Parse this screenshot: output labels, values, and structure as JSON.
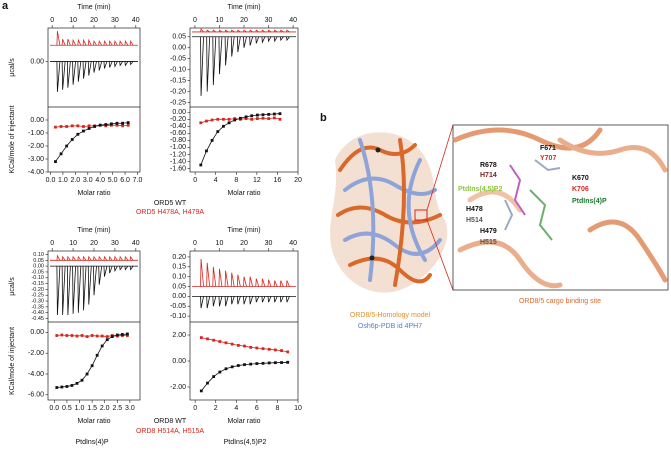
{
  "panel_labels": [
    "a",
    "b"
  ],
  "chart_data": [
    {
      "type": "itc",
      "top_axis_label": "Time (min)",
      "tlim": [
        -2,
        42
      ],
      "tticks": [
        0,
        10,
        20,
        30,
        40
      ],
      "raw_ylabel": "µcal/s",
      "ylim": [
        -0.45,
        0.33
      ],
      "yticks": [
        {
          "value": 0,
          "label": "0.00"
        }
      ],
      "raw_series": [
        {
          "color": "#d7261e",
          "baseline": 0.16,
          "x": [
            2.5,
            5,
            7.5,
            10,
            12.5,
            15,
            17.5,
            20,
            22.5,
            25,
            27.5,
            30,
            32.5,
            35,
            37.5
          ],
          "values": [
            0.3,
            0.22,
            0.22,
            0.21,
            0.21,
            0.21,
            0.21,
            0.2,
            0.2,
            0.2,
            0.2,
            0.2,
            0.2,
            0.2,
            0.2
          ]
        },
        {
          "color": "#111111",
          "baseline": 0,
          "x": [
            2.5,
            5,
            7.5,
            10,
            12.5,
            15,
            17.5,
            20,
            22.5,
            25,
            27.5,
            30,
            32.5,
            35,
            37.5
          ],
          "values": [
            -0.3,
            -0.28,
            -0.26,
            -0.23,
            -0.2,
            -0.17,
            -0.14,
            -0.11,
            -0.09,
            -0.07,
            -0.06,
            -0.05,
            -0.04,
            -0.04,
            -0.03
          ]
        }
      ],
      "iso_ylabel": "KCal/mole of injectant",
      "iso_ylim": [
        -4,
        1
      ],
      "iso_yticks": [
        {
          "value": 0,
          "label": "0.00"
        },
        {
          "value": -1,
          "label": "-1.00"
        },
        {
          "value": -2,
          "label": "-2.00"
        },
        {
          "value": -3,
          "label": "-3.00"
        },
        {
          "value": -4,
          "label": "-4.00"
        }
      ],
      "iso_xlabel": "Molar ratio",
      "iso_xlim": [
        -0.2,
        7.2
      ],
      "iso_xticks": [
        {
          "value": 0,
          "label": "0.0"
        },
        {
          "value": 1,
          "label": "1.0"
        },
        {
          "value": 2,
          "label": "2.0"
        },
        {
          "value": 3,
          "label": "3.0"
        },
        {
          "value": 4,
          "label": "4.0"
        },
        {
          "value": 5,
          "label": "5.0"
        },
        {
          "value": 6,
          "label": "6.0"
        },
        {
          "value": 7,
          "label": "7.0"
        }
      ],
      "iso_series": [
        {
          "color": "#d7261e",
          "x": [
            0.4,
            0.85,
            1.3,
            1.75,
            2.2,
            2.65,
            3.1,
            3.55,
            4.0,
            4.45,
            4.9,
            5.35,
            5.8,
            6.25
          ],
          "values": [
            -0.55,
            -0.5,
            -0.5,
            -0.45,
            -0.45,
            -0.5,
            -0.45,
            -0.45,
            -0.4,
            -0.45,
            -0.4,
            -0.4,
            -0.45,
            -0.4
          ]
        },
        {
          "color": "#111111",
          "x": [
            0.4,
            0.85,
            1.3,
            1.75,
            2.2,
            2.65,
            3.1,
            3.55,
            4.0,
            4.45,
            4.9,
            5.35,
            5.8,
            6.25
          ],
          "values": [
            -3.2,
            -2.6,
            -2.0,
            -1.5,
            -1.1,
            -0.85,
            -0.65,
            -0.5,
            -0.4,
            -0.35,
            -0.3,
            -0.25,
            -0.25,
            -0.2
          ]
        }
      ]
    },
    {
      "type": "itc",
      "top_axis_label": "Time (min)",
      "tlim": [
        -2,
        42
      ],
      "tticks": [
        0,
        10,
        20,
        30,
        40
      ],
      "ylim": [
        -0.27,
        0.09
      ],
      "yticks": [
        {
          "value": 0.05,
          "label": "0.05"
        },
        {
          "value": 0,
          "label": "0.00"
        },
        {
          "value": -0.05,
          "label": "-0.05"
        },
        {
          "value": -0.1,
          "label": "-0.10"
        },
        {
          "value": -0.15,
          "label": "-0.15"
        },
        {
          "value": -0.2,
          "label": "-0.20"
        },
        {
          "value": -0.25,
          "label": "-0.25"
        }
      ],
      "raw_series": [
        {
          "color": "#d7261e",
          "baseline": 0.072,
          "x": [
            2.5,
            5,
            7.5,
            10,
            12.5,
            15,
            17.5,
            20,
            22.5,
            25,
            27.5,
            30,
            32.5,
            35,
            37.5
          ],
          "values": [
            0.085,
            0.08,
            0.08,
            0.08,
            0.08,
            0.08,
            0.08,
            0.08,
            0.08,
            0.08,
            0.08,
            0.08,
            0.08,
            0.08,
            0.08
          ]
        },
        {
          "color": "#111111",
          "baseline": 0.05,
          "x": [
            2.5,
            5,
            7.5,
            10,
            12.5,
            15,
            17.5,
            20,
            22.5,
            25,
            27.5,
            30,
            32.5,
            35,
            37.5
          ],
          "values": [
            -0.22,
            -0.2,
            -0.17,
            -0.12,
            -0.08,
            -0.04,
            -0.02,
            0,
            0.01,
            0.02,
            0.025,
            0.03,
            0.03,
            0.035,
            0.035
          ]
        }
      ],
      "iso_ylim": [
        -1.7,
        0.15
      ],
      "iso_yticks": [
        {
          "value": 0,
          "label": "0.00"
        },
        {
          "value": -0.2,
          "label": "-0.20"
        },
        {
          "value": -0.4,
          "label": "-0.40"
        },
        {
          "value": -0.6,
          "label": "-0.60"
        },
        {
          "value": -0.8,
          "label": "-0.80"
        },
        {
          "value": -1,
          "label": "-1.00"
        },
        {
          "value": -1.2,
          "label": "-1.20"
        },
        {
          "value": -1.4,
          "label": "-1.40"
        },
        {
          "value": -1.6,
          "label": "-1.60"
        }
      ],
      "iso_xlabel": "Molar ratio",
      "iso_xlim": [
        -1,
        20
      ],
      "iso_xticks": [
        0,
        4,
        8,
        12,
        16,
        20
      ],
      "iso_series": [
        {
          "color": "#d7261e",
          "x": [
            1.1,
            2.2,
            3.3,
            4.4,
            5.5,
            6.6,
            7.7,
            8.8,
            9.9,
            11,
            12.1,
            13.2,
            14.3,
            15.4,
            16.5
          ],
          "values": [
            -0.3,
            -0.25,
            -0.22,
            -0.2,
            -0.2,
            -0.2,
            -0.18,
            -0.2,
            -0.18,
            -0.2,
            -0.18,
            -0.17,
            -0.18,
            -0.16,
            -0.2
          ]
        },
        {
          "color": "#111111",
          "x": [
            1.1,
            2.2,
            3.3,
            4.4,
            5.5,
            6.6,
            7.7,
            8.8,
            9.9,
            11,
            12.1,
            13.2,
            14.3,
            15.4,
            16.5
          ],
          "values": [
            -1.5,
            -1.1,
            -0.8,
            -0.55,
            -0.4,
            -0.3,
            -0.22,
            -0.17,
            -0.13,
            -0.1,
            -0.08,
            -0.07,
            -0.06,
            -0.05,
            -0.04
          ]
        }
      ]
    },
    {
      "type": "itc",
      "top_axis_label": "Time (min)",
      "tlim": [
        -2,
        42
      ],
      "tticks": [
        0,
        10,
        20,
        30,
        40
      ],
      "raw_ylabel": "µcal/s",
      "ylim": [
        -0.48,
        0.13
      ],
      "yticks": [
        {
          "value": 0.1,
          "label": "0.10"
        },
        {
          "value": 0.05,
          "label": "0.05"
        },
        {
          "value": 0,
          "label": "0.00"
        },
        {
          "value": -0.05,
          "label": "-0.05"
        },
        {
          "value": -0.1,
          "label": "-0.10"
        },
        {
          "value": -0.15,
          "label": "-0.15"
        },
        {
          "value": -0.2,
          "label": "-0.20"
        },
        {
          "value": -0.25,
          "label": "-0.25"
        },
        {
          "value": -0.3,
          "label": "-0.30"
        },
        {
          "value": -0.35,
          "label": "-0.35"
        },
        {
          "value": -0.4,
          "label": "-0.40"
        },
        {
          "value": -0.45,
          "label": "-0.45"
        }
      ],
      "raw_series": [
        {
          "color": "#d7261e",
          "baseline": 0.05,
          "x": [
            2.5,
            5,
            7.5,
            10,
            12.5,
            15,
            17.5,
            20,
            22.5,
            25,
            27.5,
            30,
            32.5,
            35,
            37.5
          ],
          "values": [
            0.09,
            0.08,
            0.08,
            0.08,
            0.08,
            0.08,
            0.08,
            0.08,
            0.08,
            0.08,
            0.08,
            0.08,
            0.08,
            0.08,
            0.08
          ]
        },
        {
          "color": "#111111",
          "baseline": 0,
          "x": [
            2.5,
            5,
            7.5,
            10,
            12.5,
            15,
            17.5,
            20,
            22.5,
            25,
            27.5,
            30,
            32.5,
            35,
            37.5
          ],
          "values": [
            -0.42,
            -0.42,
            -0.42,
            -0.41,
            -0.4,
            -0.38,
            -0.33,
            -0.25,
            -0.16,
            -0.09,
            -0.06,
            -0.04,
            -0.03,
            -0.03,
            -0.03
          ]
        }
      ],
      "iso_ylabel": "KCal/mole of injectant",
      "iso_ylim": [
        -6.5,
        1
      ],
      "iso_yticks": [
        {
          "value": 0,
          "label": "0.00"
        },
        {
          "value": -2,
          "label": "-2.00"
        },
        {
          "value": -4,
          "label": "-4.00"
        },
        {
          "value": -6,
          "label": "-6.00"
        }
      ],
      "iso_xlabel": "Molar ratio",
      "iso_xlim": [
        -0.25,
        3.4
      ],
      "iso_xticks": [
        {
          "value": 0,
          "label": "0.0"
        },
        {
          "value": 0.5,
          "label": "0.5"
        },
        {
          "value": 1,
          "label": "1.0"
        },
        {
          "value": 1.5,
          "label": "1.5"
        },
        {
          "value": 2,
          "label": "2.0"
        },
        {
          "value": 2.5,
          "label": "2.5"
        },
        {
          "value": 3,
          "label": "3.0"
        }
      ],
      "iso_series": [
        {
          "color": "#d7261e",
          "x": [
            0.1,
            0.3,
            0.5,
            0.7,
            0.9,
            1.1,
            1.3,
            1.5,
            1.7,
            1.9,
            2.1,
            2.3,
            2.5,
            2.7,
            2.9
          ],
          "values": [
            -0.3,
            -0.25,
            -0.3,
            -0.3,
            -0.35,
            -0.3,
            -0.4,
            -0.3,
            -0.35,
            -0.35,
            -0.4,
            -0.3,
            -0.35,
            -0.3,
            -0.3
          ]
        },
        {
          "color": "#111111",
          "x": [
            0.1,
            0.3,
            0.5,
            0.7,
            0.9,
            1.1,
            1.3,
            1.5,
            1.7,
            1.9,
            2.1,
            2.3,
            2.5,
            2.7,
            2.9
          ],
          "values": [
            -5.3,
            -5.25,
            -5.2,
            -5.1,
            -4.9,
            -4.6,
            -4.0,
            -3.2,
            -2.2,
            -1.3,
            -0.7,
            -0.4,
            -0.25,
            -0.2,
            -0.15
          ]
        }
      ]
    },
    {
      "type": "itc",
      "top_axis_label": "Time (min)",
      "tlim": [
        -2,
        42
      ],
      "tticks": [
        0,
        10,
        20,
        30,
        40
      ],
      "ylim": [
        -0.13,
        0.23
      ],
      "yticks": [
        {
          "value": 0.2,
          "label": "0.20"
        },
        {
          "value": 0.15,
          "label": "0.15"
        },
        {
          "value": 0.1,
          "label": "0.10"
        },
        {
          "value": 0.05,
          "label": "0.05"
        },
        {
          "value": 0,
          "label": "0.00"
        },
        {
          "value": -0.05,
          "label": "-0.05"
        },
        {
          "value": -0.1,
          "label": "-0.10"
        }
      ],
      "raw_series": [
        {
          "color": "#d7261e",
          "baseline": 0.05,
          "x": [
            2.5,
            5,
            7.5,
            10,
            12.5,
            15,
            17.5,
            20,
            22.5,
            25,
            27.5,
            30,
            32.5,
            35,
            37.5
          ],
          "values": [
            0.19,
            0.17,
            0.15,
            0.14,
            0.13,
            0.12,
            0.11,
            0.1,
            0.1,
            0.09,
            0.09,
            0.085,
            0.08,
            0.08,
            0.08
          ]
        },
        {
          "color": "#111111",
          "baseline": 0,
          "x": [
            2.5,
            5,
            7.5,
            10,
            12.5,
            15,
            17.5,
            20,
            22.5,
            25,
            27.5,
            30,
            32.5,
            35,
            37.5
          ],
          "values": [
            -0.06,
            -0.06,
            -0.05,
            -0.05,
            -0.05,
            -0.04,
            -0.04,
            -0.04,
            -0.04,
            -0.03,
            -0.03,
            -0.03,
            -0.03,
            -0.03,
            -0.03
          ]
        }
      ],
      "iso_ylim": [
        -3,
        3
      ],
      "iso_yticks": [
        {
          "value": 2,
          "label": "2.00"
        },
        {
          "value": 0,
          "label": "0.00"
        },
        {
          "value": -2,
          "label": "-2.00"
        }
      ],
      "iso_xlabel": "Molar ratio",
      "iso_xlim": [
        -0.5,
        10
      ],
      "iso_xticks": [
        0,
        2,
        4,
        6,
        8,
        10
      ],
      "iso_series": [
        {
          "color": "#d7261e",
          "x": [
            0.6,
            1.2,
            1.8,
            2.4,
            3.0,
            3.6,
            4.2,
            4.8,
            5.4,
            6.0,
            6.6,
            7.2,
            7.8,
            8.4,
            9.0
          ],
          "values": [
            1.8,
            1.7,
            1.6,
            1.5,
            1.4,
            1.3,
            1.2,
            1.15,
            1.05,
            1.0,
            0.95,
            0.9,
            0.85,
            0.8,
            0.7
          ]
        },
        {
          "color": "#111111",
          "x": [
            0.6,
            1.2,
            1.8,
            2.4,
            3.0,
            3.6,
            4.2,
            4.8,
            5.4,
            6.0,
            6.6,
            7.2,
            7.8,
            8.4,
            9.0
          ],
          "values": [
            -2.3,
            -1.7,
            -1.2,
            -0.85,
            -0.6,
            -0.45,
            -0.35,
            -0.28,
            -0.24,
            -0.2,
            -0.18,
            -0.15,
            -0.13,
            -0.12,
            -0.1
          ]
        }
      ]
    }
  ],
  "legends": [
    [
      "ORD5 WT",
      "ORD5 H478A, H479A"
    ],
    [
      "ORD8 WT",
      "ORD8 H514A, H515A"
    ]
  ],
  "column_labels": [
    "PtdIns(4)P",
    "PtdIns(4,5)P2"
  ],
  "structure": {
    "residues": [
      "F671",
      "Y707",
      "R678",
      "H714",
      "K670",
      "K706",
      "H478",
      "H514",
      "H479",
      "H515"
    ],
    "ligands": [
      "PtdIns(4,5)P2",
      "PtdIns(4)P"
    ],
    "model_caption": "ORD8/5-Homology model",
    "template_caption": "Osh6p-PDB id 4PH7",
    "site_caption": "ORD8/5 cargo binding site"
  }
}
